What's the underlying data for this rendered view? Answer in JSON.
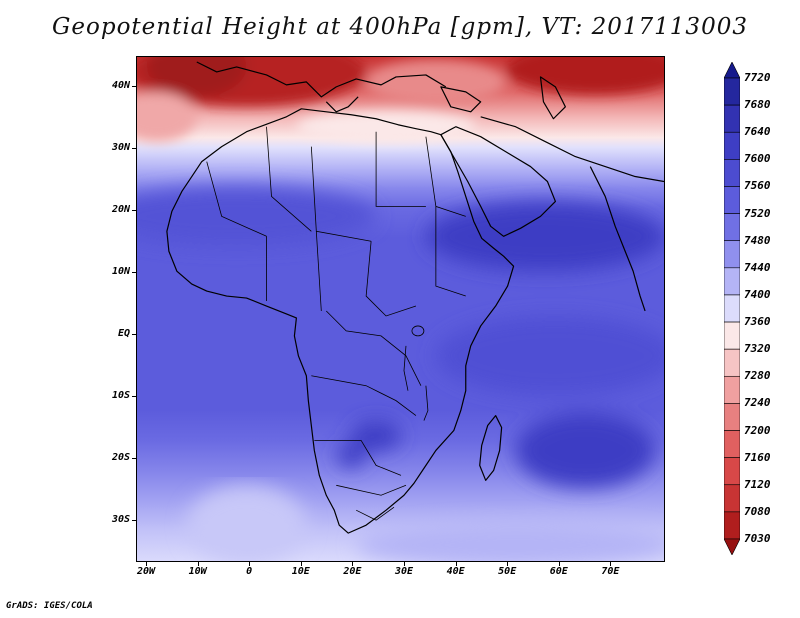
{
  "title": "Geopotential Height at 400hPa [gpm], VT: 2017113003",
  "credit": "GrADS: IGES/COLA",
  "axes": {
    "y_labels": [
      "40N",
      "30N",
      "20N",
      "10N",
      "EQ",
      "10S",
      "20S",
      "30S"
    ],
    "x_labels": [
      "20W",
      "10W",
      "0",
      "10E",
      "20E",
      "30E",
      "40E",
      "50E",
      "60E",
      "70E"
    ]
  },
  "colorbar": {
    "labels": [
      "7720",
      "7680",
      "7640",
      "7600",
      "7560",
      "7520",
      "7480",
      "7440",
      "7400",
      "7360",
      "7320",
      "7280",
      "7240",
      "7200",
      "7160",
      "7120",
      "7080",
      "7030"
    ],
    "colors": [
      "#161a8c",
      "#24279e",
      "#3232b2",
      "#3e3ec4",
      "#4c4cd0",
      "#5c5cdc",
      "#7070e4",
      "#9090ee",
      "#b4b4f6",
      "#dcdcfc",
      "#fbe8e8",
      "#f6c4c4",
      "#f0a0a0",
      "#e88080",
      "#e06060",
      "#d84848",
      "#c83434",
      "#b01e1e",
      "#961010"
    ]
  }
}
